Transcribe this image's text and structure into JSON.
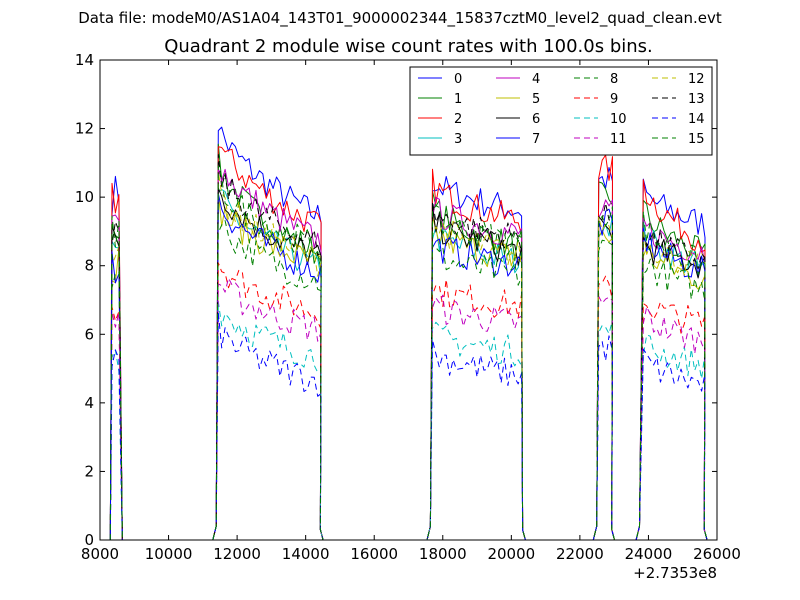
{
  "figure": {
    "suptitle": "Data file: modeM0/AS1A04_143T01_9000002344_15837cztM0_level2_quad_clean.evt"
  },
  "chart_data": {
    "type": "line",
    "title": "Quadrant 2 module wise count rates with 100.0s bins.",
    "xlabel": "",
    "ylabel": "",
    "x_offset_label": "+2.7353e8",
    "xlim": [
      8000,
      26000
    ],
    "ylim": [
      0,
      14
    ],
    "xticks": [
      "8000",
      "10000",
      "12000",
      "14000",
      "16000",
      "18000",
      "20000",
      "22000",
      "24000",
      "26000"
    ],
    "yticks": [
      "0",
      "2",
      "4",
      "6",
      "8",
      "10",
      "12",
      "14"
    ],
    "grid": false,
    "legend_position": "top-right",
    "legend_columns": 4,
    "segments": [
      {
        "start": 8350,
        "end": 8600,
        "on_start": 8350,
        "on_end": 8600
      },
      {
        "start": 11350,
        "end": 14450,
        "on_start": 11450,
        "on_end": 14400
      },
      {
        "start": 17600,
        "end": 20350,
        "on_start": 17700,
        "on_end": 20300
      },
      {
        "start": 22450,
        "end": 22950,
        "on_start": 22550,
        "on_end": 22900
      },
      {
        "start": 23700,
        "end": 25650,
        "on_start": 23850,
        "on_end": 25600
      }
    ],
    "series": [
      {
        "name": "0",
        "color": "#0000ff",
        "dash": "solid",
        "levels": [
          10.1,
          12.2,
          9.4,
          10.5,
          10.5,
          9.2
        ]
      },
      {
        "name": "1",
        "color": "#008000",
        "dash": "solid",
        "levels": [
          9.3,
          11.1,
          8.3,
          9.8,
          10.0,
          8.3
        ]
      },
      {
        "name": "2",
        "color": "#ff0000",
        "dash": "solid",
        "levels": [
          9.9,
          11.8,
          9.1,
          10.4,
          10.8,
          8.7
        ]
      },
      {
        "name": "3",
        "color": "#00bfbf",
        "dash": "solid",
        "levels": [
          8.2,
          10.2,
          7.9,
          9.0,
          9.3,
          7.9
        ]
      },
      {
        "name": "4",
        "color": "#bf00bf",
        "dash": "solid",
        "levels": [
          9.2,
          11.2,
          8.7,
          9.7,
          9.5,
          8.4
        ]
      },
      {
        "name": "5",
        "color": "#bfbf00",
        "dash": "solid",
        "levels": [
          8.1,
          9.8,
          8.0,
          9.0,
          8.8,
          7.6
        ]
      },
      {
        "name": "6",
        "color": "#000000",
        "dash": "solid",
        "levels": [
          8.7,
          10.4,
          8.2,
          9.3,
          9.0,
          8.0
        ]
      },
      {
        "name": "7",
        "color": "#0000ff",
        "dash": "solid",
        "levels": [
          8.0,
          10.0,
          7.8,
          8.7,
          9.2,
          7.8
        ]
      },
      {
        "name": "8",
        "color": "#008000",
        "dash": "dashed",
        "levels": [
          7.8,
          9.4,
          7.5,
          8.4,
          8.5,
          7.3
        ]
      },
      {
        "name": "9",
        "color": "#ff0000",
        "dash": "dashed",
        "levels": [
          6.9,
          8.2,
          6.6,
          7.4,
          7.3,
          6.3
        ]
      },
      {
        "name": "10",
        "color": "#00bfbf",
        "dash": "dashed",
        "levels": [
          5.5,
          6.9,
          5.3,
          6.0,
          6.1,
          5.1
        ]
      },
      {
        "name": "11",
        "color": "#bf00bf",
        "dash": "dashed",
        "levels": [
          6.5,
          7.6,
          6.1,
          6.9,
          6.9,
          5.8
        ]
      },
      {
        "name": "12",
        "color": "#bfbf00",
        "dash": "dashed",
        "levels": [
          8.6,
          10.3,
          8.1,
          9.3,
          9.2,
          7.9
        ]
      },
      {
        "name": "13",
        "color": "#000000",
        "dash": "dashed",
        "levels": [
          9.0,
          10.8,
          8.6,
          9.6,
          9.4,
          8.1
        ]
      },
      {
        "name": "14",
        "color": "#0000ff",
        "dash": "dashed",
        "levels": [
          5.2,
          6.2,
          4.6,
          5.5,
          5.6,
          4.5
        ]
      },
      {
        "name": "15",
        "color": "#008000",
        "dash": "dashed",
        "levels": [
          8.9,
          10.5,
          8.5,
          9.4,
          9.6,
          8.0
        ]
      }
    ]
  }
}
